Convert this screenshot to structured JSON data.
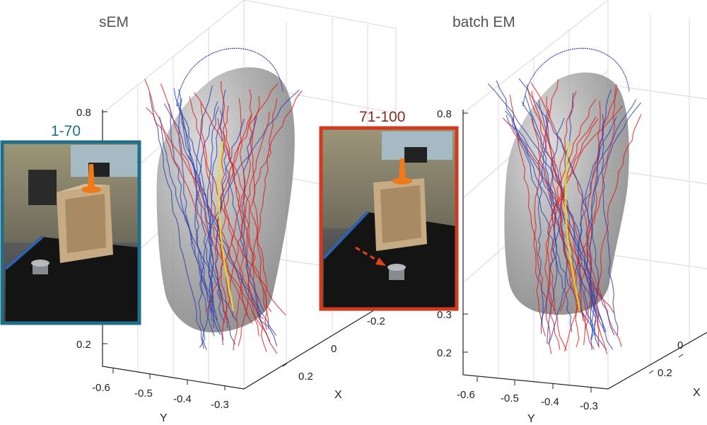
{
  "chart_data": [
    {
      "type": "line",
      "title": "sEM",
      "xlabel": "X",
      "ylabel": "Y",
      "zlabel": "",
      "x_ticks": [
        "-0.2",
        "0",
        "0.2"
      ],
      "y_ticks": [
        "-0.6",
        "-0.5",
        "-0.4",
        "-0.3"
      ],
      "z_ticks": [
        "0.8",
        "0.2"
      ],
      "grid": true,
      "series": [],
      "insets": [
        {
          "label": "1-70",
          "color": "#1f6f8b"
        },
        {
          "label": "71-100",
          "color": "#d2391f"
        }
      ]
    },
    {
      "type": "line",
      "title": "batch EM",
      "xlabel": "X",
      "ylabel": "Y",
      "zlabel": "",
      "x_ticks": [
        "0",
        "0.2"
      ],
      "y_ticks": [
        "-0.6",
        "-0.5",
        "-0.4",
        "-0.3"
      ],
      "z_ticks": [
        "0.8",
        "0.3",
        "0.2"
      ],
      "grid": true,
      "series": []
    }
  ],
  "colors": {
    "trajectory_blue": "#2a3fb0",
    "trajectory_red": "#e01818",
    "mean_yellow": "#e8e020",
    "surface_gray": "#9a9a9a",
    "inset1_frame": "#1f6f8b",
    "inset2_frame": "#d2391f"
  }
}
